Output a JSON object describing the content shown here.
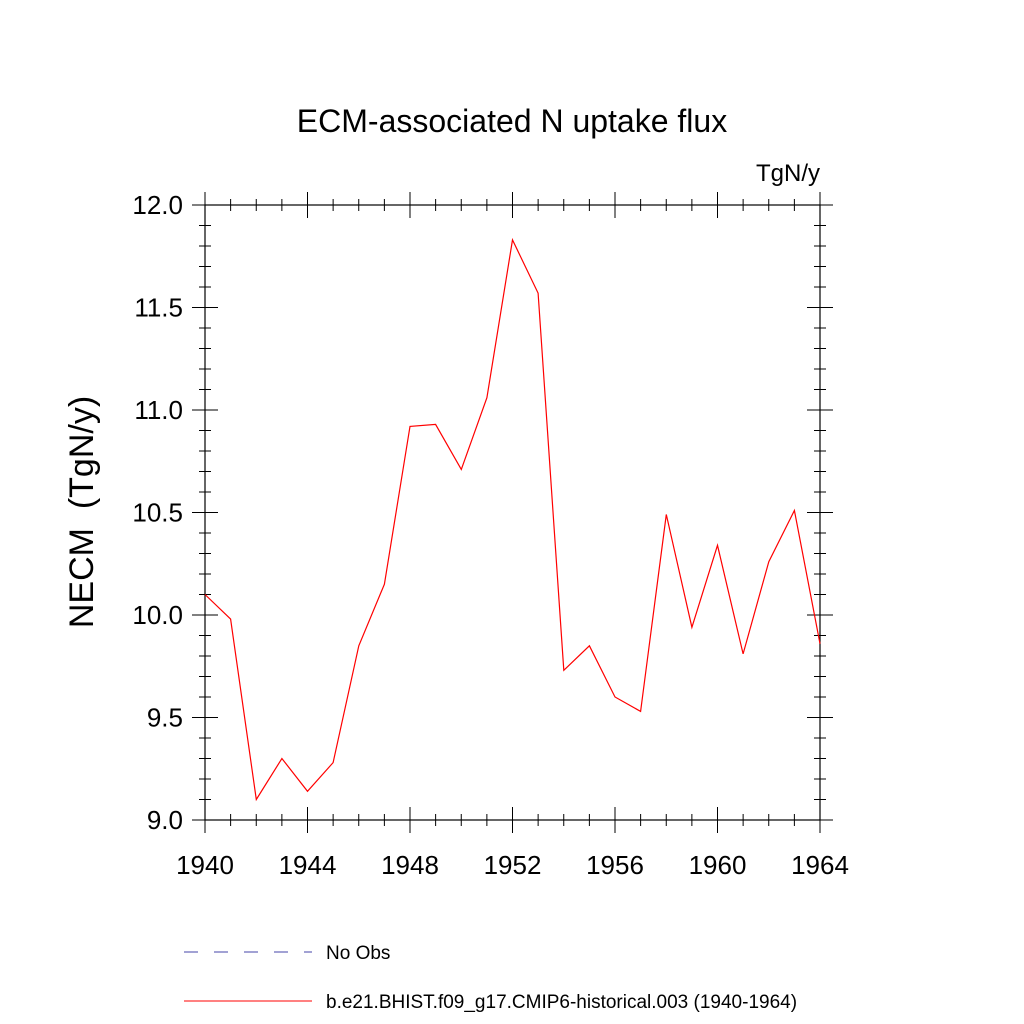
{
  "chart_data": {
    "type": "line",
    "title": "ECM-associated N uptake flux",
    "units_label": "TgN/y",
    "ylabel": "NECM  (TgN/y)",
    "xlabel": "",
    "xlim": [
      1940,
      1964
    ],
    "ylim": [
      9.0,
      12.0
    ],
    "x_ticks": [
      "1940",
      "1944",
      "1948",
      "1952",
      "1956",
      "1960",
      "1964"
    ],
    "y_ticks": [
      "9.0",
      "9.5",
      "10.0",
      "10.5",
      "11.0",
      "11.5",
      "12.0"
    ],
    "grid": false,
    "legend_position": "bottom",
    "series": [
      {
        "name": "b.e21.BHIST.f09_g17.CMIP6-historical.003 (1940-1964)",
        "color": "#ff0000",
        "style": "solid",
        "x": [
          1940,
          1941,
          1942,
          1943,
          1944,
          1945,
          1946,
          1947,
          1948,
          1949,
          1950,
          1951,
          1952,
          1953,
          1954,
          1955,
          1956,
          1957,
          1958,
          1959,
          1960,
          1961,
          1962,
          1963,
          1964
        ],
        "values": [
          10.1,
          9.98,
          9.1,
          9.3,
          9.14,
          9.28,
          9.85,
          10.15,
          10.92,
          10.93,
          10.71,
          11.06,
          11.83,
          11.57,
          9.73,
          9.85,
          9.6,
          9.53,
          10.49,
          9.94,
          10.34,
          9.81,
          10.26,
          10.51,
          9.86
        ]
      }
    ],
    "legend": [
      {
        "label": "No Obs",
        "color": "#4444aa",
        "style": "dashed"
      },
      {
        "label": "b.e21.BHIST.f09_g17.CMIP6-historical.003 (1940-1964)",
        "color": "#ff0000",
        "style": "solid"
      }
    ]
  }
}
